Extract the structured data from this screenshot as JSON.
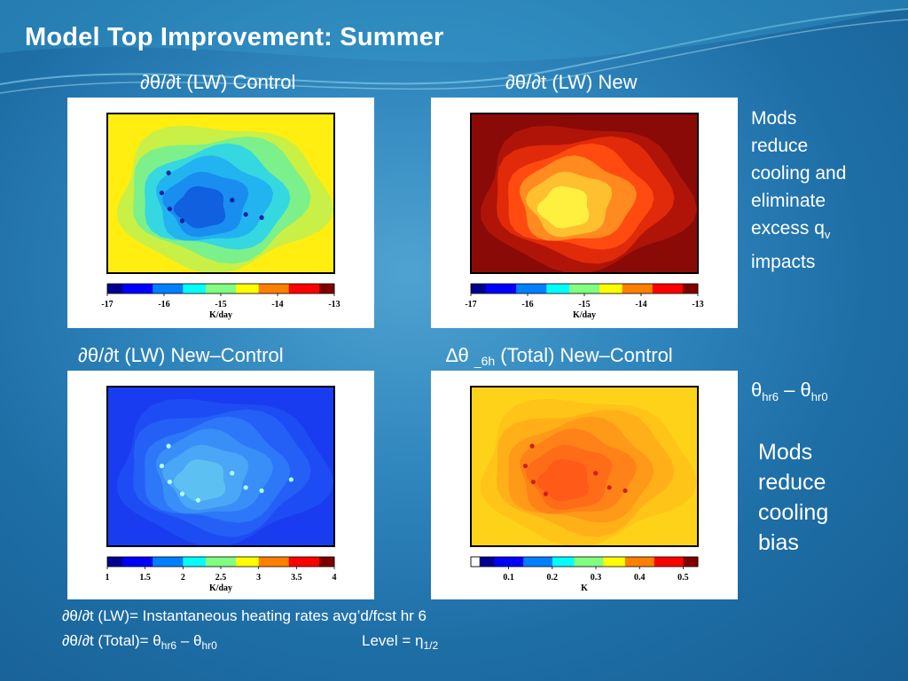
{
  "slide": {
    "title": "Model Top Improvement: Summer"
  },
  "panels": [
    {
      "id": "lw-control",
      "title_prefix": "∂θ/∂t (LW) Control",
      "title_sub": "",
      "title_suffix": "",
      "colorbar_ticks": [
        "-17",
        "-16",
        "-15",
        "-14",
        "-13"
      ],
      "colorbar_unit": "K/day",
      "field": "cool"
    },
    {
      "id": "lw-new",
      "title_prefix": "∂θ/∂t  (LW)  New",
      "title_sub": "",
      "title_suffix": "",
      "colorbar_ticks": [
        "-17",
        "-16",
        "-15",
        "-14",
        "-13"
      ],
      "colorbar_unit": "K/day",
      "field": "warm"
    },
    {
      "id": "lw-diff",
      "title_prefix": "∂θ/∂t  (LW) New–Control",
      "title_sub": "",
      "title_suffix": "",
      "colorbar_ticks": [
        "1",
        "1.5",
        "2",
        "2.5",
        "3",
        "3.5",
        "4"
      ],
      "colorbar_unit": "K/day",
      "field": "blue"
    },
    {
      "id": "total-diff",
      "title_prefix": "∆θ ",
      "title_sub": "_6h",
      "title_suffix": "  (Total) New–Control",
      "colorbar_ticks": [
        "0.1",
        "0.2",
        "0.3",
        "0.4",
        "0.5"
      ],
      "colorbar_unit": "K",
      "field": "orange"
    }
  ],
  "notes": {
    "mods_cooling_qv": {
      "lines": [
        "Mods",
        "reduce",
        "cooling and",
        "eliminate"
      ],
      "excess": "excess q",
      "excess_sub": "v",
      "last": "impacts"
    },
    "theta_label": {
      "a": "θ",
      "a_sub": "hr6",
      "dash": " – ",
      "b": "θ",
      "b_sub": "hr0"
    },
    "mods_bias": {
      "lines": [
        "Mods",
        "reduce",
        "cooling",
        "bias"
      ]
    }
  },
  "footnotes": {
    "line1": "∂θ/∂t (LW)= Instantaneous heating rates avg’d/fcst hr 6",
    "line2_prefix": "∂θ/∂t (Total)= θ",
    "line2_sub1": "hr6",
    "line2_mid": " – θ",
    "line2_sub2": "hr0",
    "level_prefix": "Level = η",
    "level_sub": "1/2"
  },
  "colors": {
    "jet": [
      "#00008f",
      "#0000ff",
      "#0080ff",
      "#00ffff",
      "#80ff80",
      "#ffff00",
      "#ff8000",
      "#ff0000",
      "#800000"
    ]
  }
}
